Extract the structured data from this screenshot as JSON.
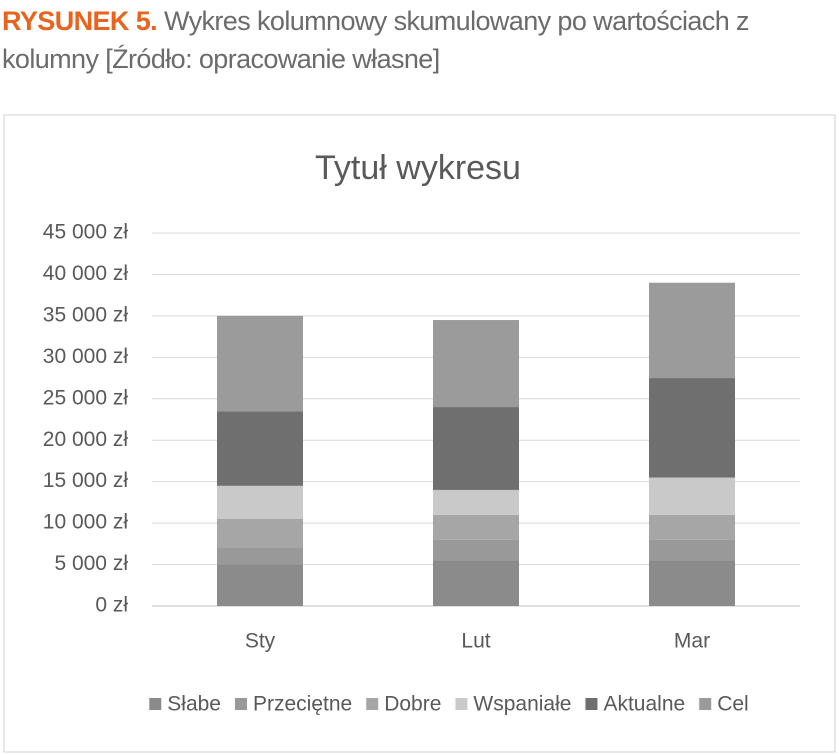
{
  "figure_label": "RYSUNEK 5.",
  "caption": "Wykres kolumnowy skumulowany po wartościach z kolumny [Źródło: opracowanie własne]",
  "chart_data": {
    "type": "bar",
    "stacked": true,
    "title": "Tytuł wykresu",
    "categories": [
      "Sty",
      "Lut",
      "Mar"
    ],
    "series": [
      {
        "name": "Słabe",
        "color": "#8b8b8b",
        "values": [
          5000,
          5500,
          5500
        ]
      },
      {
        "name": "Przeciętne",
        "color": "#999999",
        "values": [
          2000,
          2500,
          2500
        ]
      },
      {
        "name": "Dobre",
        "color": "#a6a6a6",
        "values": [
          3500,
          3000,
          3000
        ]
      },
      {
        "name": "Wspaniałe",
        "color": "#c9c9c9",
        "values": [
          4000,
          3000,
          4500
        ]
      },
      {
        "name": "Aktualne",
        "color": "#6f6f6f",
        "values": [
          9000,
          10000,
          12000
        ]
      },
      {
        "name": "Cel",
        "color": "#9b9b9b",
        "values": [
          11500,
          10500,
          11500
        ]
      }
    ],
    "ylim": [
      0,
      45000
    ],
    "yticks": [
      {
        "value": 0,
        "label": "0 zł"
      },
      {
        "value": 5000,
        "label": "5 000 zł"
      },
      {
        "value": 10000,
        "label": "10 000 zł"
      },
      {
        "value": 15000,
        "label": "15 000 zł"
      },
      {
        "value": 20000,
        "label": "20 000 zł"
      },
      {
        "value": 25000,
        "label": "25 000 zł"
      },
      {
        "value": 30000,
        "label": "30 000 zł"
      },
      {
        "value": 35000,
        "label": "35 000 zł"
      },
      {
        "value": 40000,
        "label": "40 000 zł"
      },
      {
        "value": 45000,
        "label": "45 000 zł"
      }
    ],
    "grid": true,
    "legend": "bottom"
  }
}
